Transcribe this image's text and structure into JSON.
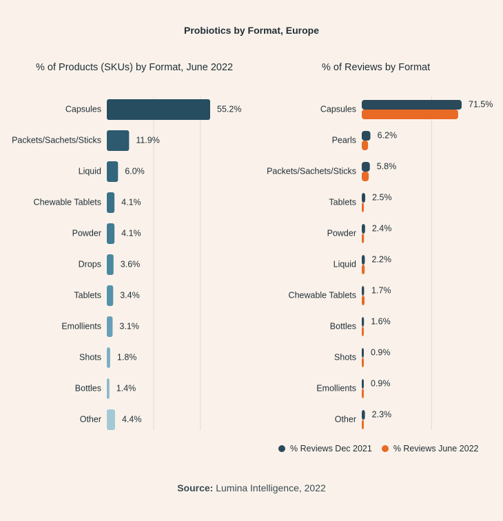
{
  "title": "Probiotics by Format, Europe",
  "source_label": "Source:",
  "source_text": "Lumina Intelligence, 2022",
  "colors": {
    "background": "#faf2ea",
    "dec2021": "#2a4a5c",
    "jun2022": "#e86a25",
    "left_palette": [
      "#274d60",
      "#2d5a6f",
      "#33667c",
      "#3b7188",
      "#417c93",
      "#4a899f",
      "#5592ac",
      "#679fb8",
      "#7aaec4",
      "#8cb9cd",
      "#a3c8d6"
    ]
  },
  "chart_data": [
    {
      "type": "bar",
      "orientation": "horizontal",
      "title": "% of Products (SKUs) by Format, June 2022",
      "categories": [
        "Capsules",
        "Packets/Sachets/Sticks",
        "Liquid",
        "Chewable Tablets",
        "Powder",
        "Drops",
        "Tablets",
        "Emollients",
        "Shots",
        "Bottles",
        "Other"
      ],
      "values": [
        55.2,
        11.9,
        6.0,
        4.1,
        4.1,
        3.6,
        3.4,
        3.1,
        1.8,
        1.4,
        4.4
      ],
      "labels": [
        "55.2%",
        "11.9%",
        "6.0%",
        "4.1%",
        "4.1%",
        "3.6%",
        "3.4%",
        "3.1%",
        "1.8%",
        "1.4%",
        "4.4%"
      ],
      "xlim": [
        0,
        55.2
      ],
      "gridlines": [
        25,
        50
      ]
    },
    {
      "type": "bar",
      "orientation": "horizontal",
      "title": "% of Reviews by Format",
      "categories": [
        "Capsules",
        "Pearls",
        "Packets/Sachets/Sticks",
        "Tablets",
        "Powder",
        "Liquid",
        "Chewable Tablets",
        "Bottles",
        "Shots",
        "Emollients",
        "Other"
      ],
      "series": [
        {
          "name": "% Reviews Dec 2021",
          "values": [
            71.5,
            6.2,
            5.8,
            2.5,
            2.4,
            2.2,
            1.7,
            1.6,
            0.9,
            0.9,
            2.3
          ]
        },
        {
          "name": "% Reviews June 2022",
          "values": [
            69.0,
            4.5,
            5.0,
            1.5,
            1.6,
            2.1,
            2.0,
            1.2,
            1.3,
            1.3,
            1.4
          ]
        }
      ],
      "labels": [
        "71.5%",
        "6.2%",
        "5.8%",
        "2.5%",
        "2.4%",
        "2.2%",
        "1.7%",
        "1.6%",
        "0.9%",
        "0.9%",
        "2.3%"
      ],
      "xlim": [
        0,
        71.5
      ],
      "gridlines": [
        50
      ]
    }
  ]
}
